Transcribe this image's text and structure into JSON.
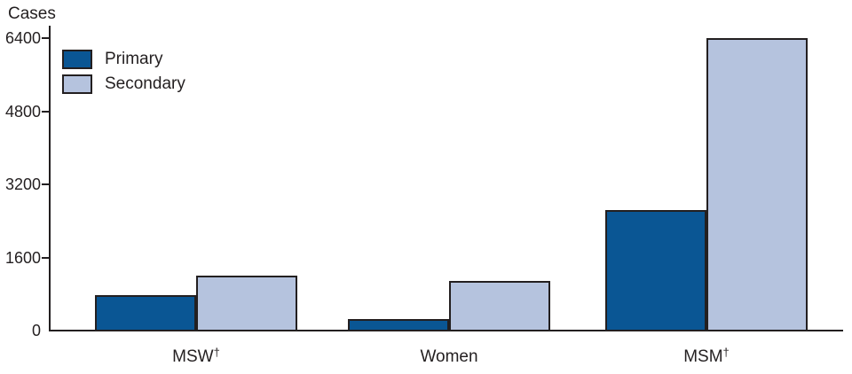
{
  "page": {
    "background": "#ffffff",
    "text_color": "#231f20"
  },
  "chart_data": {
    "type": "bar",
    "ylabel": "Cases",
    "categories": [
      {
        "label": "MSW",
        "suffix": "†"
      },
      {
        "label": "Women",
        "suffix": ""
      },
      {
        "label": "MSM",
        "suffix": "†"
      }
    ],
    "series": [
      {
        "name": "Primary",
        "color": "#0a5694",
        "values": [
          780,
          250,
          2640
        ]
      },
      {
        "name": "Secondary",
        "color": "#b5c3de",
        "values": [
          1200,
          1090,
          6400
        ]
      }
    ],
    "yticks": [
      0,
      1600,
      3200,
      4800,
      6400
    ],
    "ylim": [
      0,
      6400
    ],
    "grid": false,
    "legend_position": "top-left",
    "axis_color": "#231f20",
    "bar_border_color": "#231f20"
  }
}
